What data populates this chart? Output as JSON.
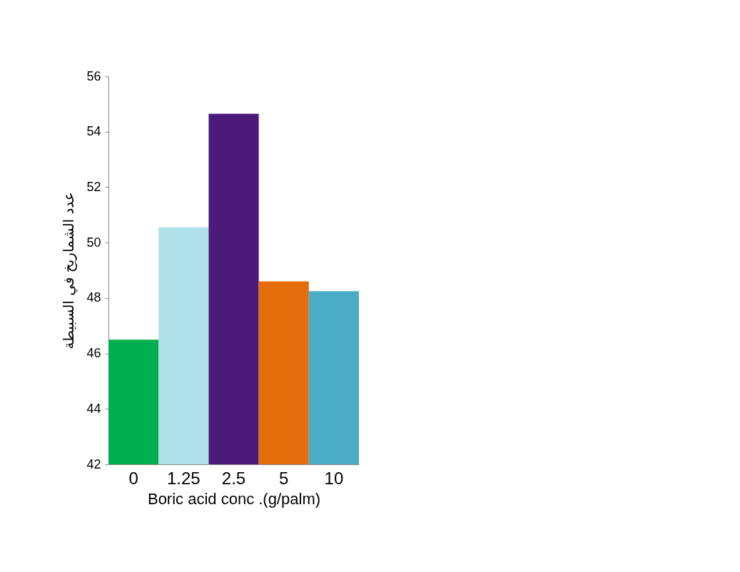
{
  "chart_data": {
    "type": "bar",
    "xlabel": "Boric acid conc .(g/palm)",
    "ylabel": "عدد الشماريخ في السبيطة",
    "categories": [
      "0",
      "1.25",
      "2.5",
      "5",
      "10"
    ],
    "values": [
      46.5,
      50.55,
      54.65,
      48.6,
      48.25
    ],
    "colors": [
      "#00b050",
      "#b0e0e8",
      "#4b1a7a",
      "#e46c0a",
      "#4bacc6"
    ],
    "ylim": [
      42,
      56
    ],
    "yticks": [
      42,
      44,
      46,
      48,
      50,
      52,
      54,
      56
    ],
    "grid": false,
    "legend": false
  }
}
